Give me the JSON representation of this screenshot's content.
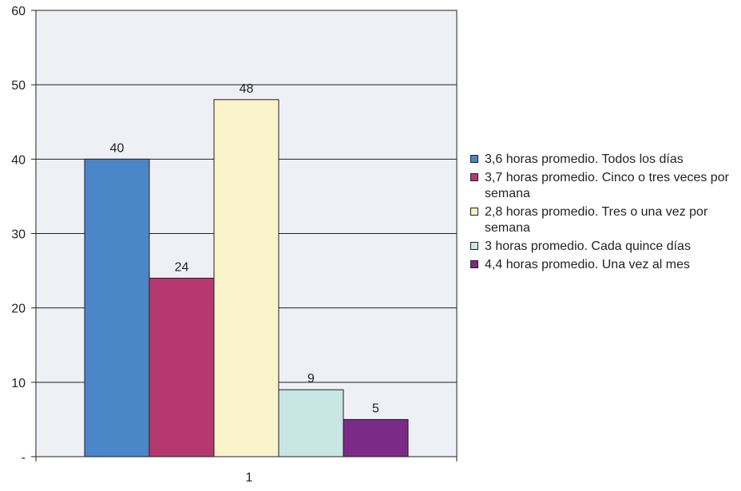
{
  "chart_data": {
    "type": "bar",
    "categories": [
      "1"
    ],
    "series": [
      {
        "name": "3,6 horas promedio. Todos los días",
        "values": [
          40
        ],
        "color": "#4a86c8"
      },
      {
        "name": "3,7 horas promedio. Cinco o tres veces por semana",
        "values": [
          24
        ],
        "color": "#b5386e"
      },
      {
        "name": "2,8 horas promedio. Tres o una vez por semana",
        "values": [
          48
        ],
        "color": "#f9f3cc"
      },
      {
        "name": "3 horas promedio. Cada quince días",
        "values": [
          9
        ],
        "color": "#c8e6e4"
      },
      {
        "name": "4,4 horas promedio. Una vez al mes",
        "values": [
          5
        ],
        "color": "#7b2a85"
      }
    ],
    "y_ticks": [
      "-",
      "10",
      "20",
      "30",
      "40",
      "50",
      "60"
    ],
    "ylim": [
      0,
      60
    ],
    "grid": true,
    "legend_position": "right",
    "plot_background": "#eef0f5"
  }
}
